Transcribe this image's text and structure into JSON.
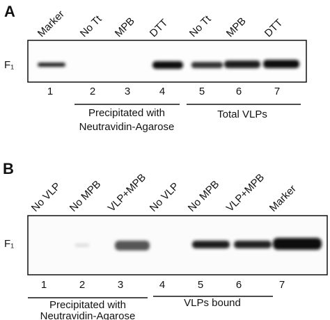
{
  "panels": [
    {
      "letter": "A",
      "label": "F₁",
      "lane_labels": [
        "Marker",
        "No Tt",
        "MPB",
        "DTT",
        "No Tt",
        "MPB",
        "DTT"
      ],
      "lane_numbers": [
        1,
        2,
        3,
        4,
        5,
        6,
        7
      ],
      "groups": [
        {
          "lines": [
            "Precipitated with",
            "Neutravidin-Agarose"
          ]
        },
        {
          "lines": [
            "Total VLPs"
          ]
        }
      ]
    },
    {
      "letter": "B",
      "label": "F₁",
      "lane_labels": [
        "No VLP",
        "No MPB",
        "VLP+MPB",
        "No VLP",
        "No MPB",
        "VLP+MPB",
        "Marker"
      ],
      "lane_numbers": [
        1,
        2,
        3,
        4,
        5,
        6,
        7
      ],
      "groups": [
        {
          "lines": [
            "Precipitated with",
            "Neutravidin-Agarose"
          ]
        },
        {
          "lines": [
            "VLPs bound"
          ]
        }
      ]
    }
  ]
}
